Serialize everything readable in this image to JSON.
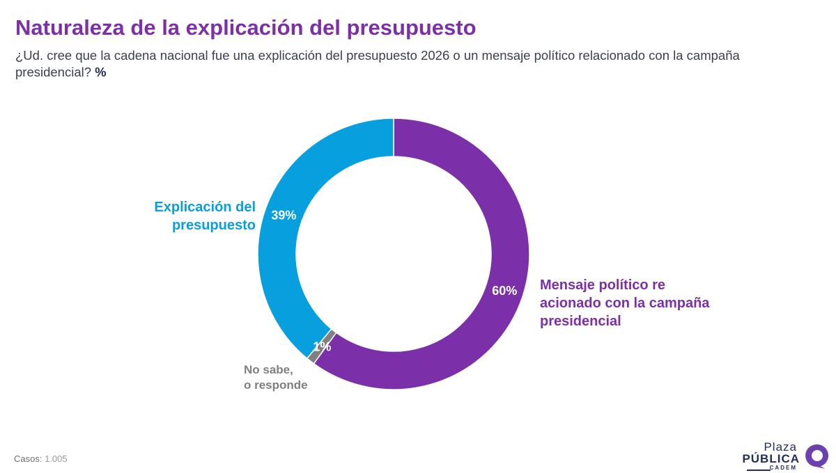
{
  "title": "Naturaleza de la explicación del presupuesto",
  "subtitle": "¿Ud. cree que la cadena nacional fue una explicación del presupuesto 2026 o un mensaje político relacionado con la campaña presidencial?",
  "subtitle_unit": "%",
  "chart_data": {
    "type": "pie",
    "donut": true,
    "slices": [
      {
        "label": "Mensaje político relacionado con la campaña presidencial",
        "value": 60,
        "value_label": "60%",
        "color": "#7B2FA8",
        "label_color": "#7B2FA8"
      },
      {
        "label": "No sabe, no responde",
        "value": 1,
        "value_label": "1%",
        "color": "#808080",
        "label_color": "#7f7f7f"
      },
      {
        "label": "Explicación del presupuesto",
        "value": 39,
        "value_label": "39%",
        "color": "#079FDD",
        "label_color": "#079FDD"
      }
    ]
  },
  "footer": {
    "label": "Casos:",
    "value": "1.005"
  },
  "logo": {
    "line1": "Plaza",
    "line2": "PÚBLICA",
    "line3": "CADEM"
  },
  "colors": {
    "accent": "#7B2FA8",
    "blue": "#079FDD",
    "gray": "#808080",
    "navy": "#1f2d5c"
  }
}
